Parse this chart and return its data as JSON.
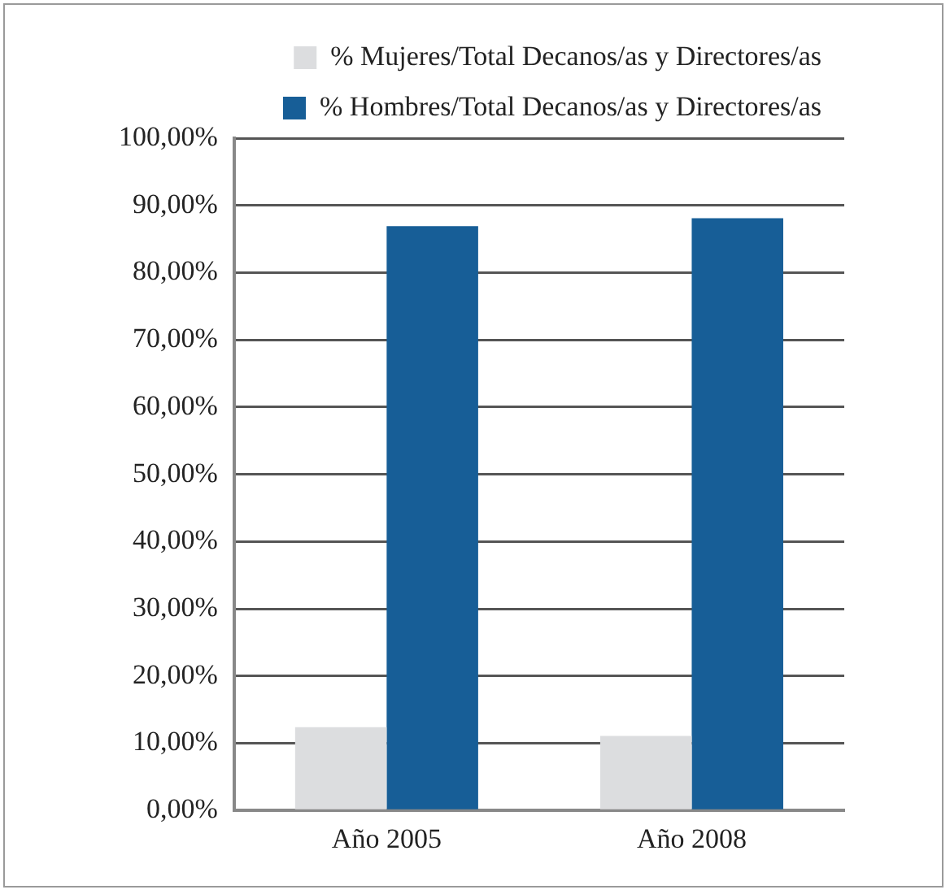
{
  "chart_data": {
    "type": "bar",
    "categories": [
      "Año 2005",
      "Año 2008"
    ],
    "series": [
      {
        "name": "% Mujeres/Total Decanos/as y Directores/as",
        "color": "#dcdddf",
        "values": [
          12.4,
          11.1
        ]
      },
      {
        "name": "% Hombres/Total Decanos/as y Directores/as",
        "color": "#175e97",
        "values": [
          86.9,
          88.1
        ]
      }
    ],
    "ylim": [
      0,
      100
    ],
    "yticks": [
      {
        "value": 0,
        "label": "0,00%"
      },
      {
        "value": 10,
        "label": "10,00%"
      },
      {
        "value": 20,
        "label": "20,00%"
      },
      {
        "value": 30,
        "label": "30,00%"
      },
      {
        "value": 40,
        "label": "40,00%"
      },
      {
        "value": 50,
        "label": "50,00%"
      },
      {
        "value": 60,
        "label": "60,00%"
      },
      {
        "value": 70,
        "label": "70,00%"
      },
      {
        "value": 80,
        "label": "80,00%"
      },
      {
        "value": 90,
        "label": "90,00%"
      },
      {
        "value": 100,
        "label": "100,00%"
      }
    ],
    "grid": "y",
    "legend": "top right"
  }
}
